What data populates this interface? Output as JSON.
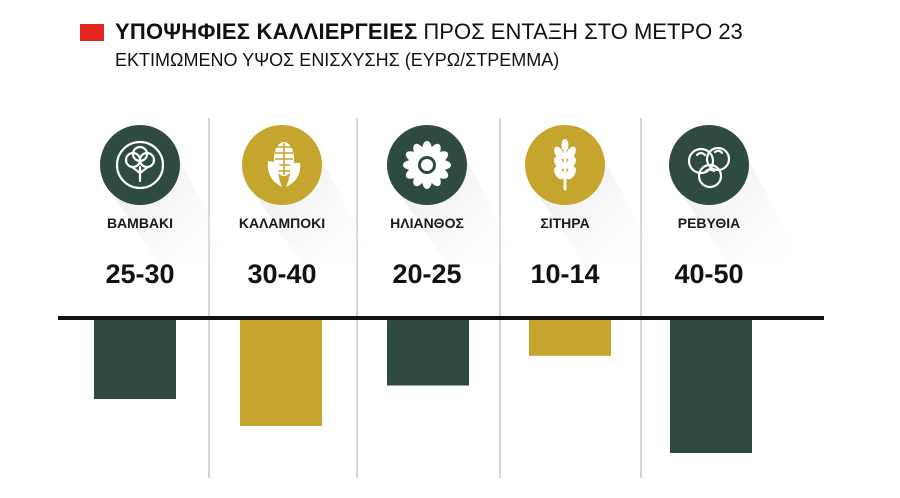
{
  "title": {
    "bold": "ΥΠΟΨΗΦΙΕΣ ΚΑΛΛΙΕΡΓΕΙΕΣ",
    "rest": "ΠΡΟΣ ΕΝΤΑΞΗ ΣΤΟ ΜΕΤΡΟ 23",
    "accent_color": "#e0261e"
  },
  "subtitle": "ΕΚΤΙΜΩΜΕΝΟ ΥΨΟΣ ΕΝΙΣΧΥΣΗΣ (ΕΥΡΩ/ΣΤΡΕΜΜΑ)",
  "colors": {
    "green": "#2f4a3e",
    "gold": "#c6a52e",
    "axis": "#111111",
    "divider": "#c9c9c9"
  },
  "chart_data": {
    "type": "bar",
    "orientation": "downward",
    "categories": [
      "ΒΑΜΒΑΚΙ",
      "ΚΑΛΑΜΠΟΚΙ",
      "ΗΛΙΑΝΘΟΣ",
      "ΣΙΤΗΡΑ",
      "ΡΕΒΥΘΙΑ"
    ],
    "labels": [
      "25-30",
      "30-40",
      "20-25",
      "10-14",
      "40-50"
    ],
    "ranges": [
      [
        25,
        30
      ],
      [
        30,
        40
      ],
      [
        20,
        25
      ],
      [
        10,
        14
      ],
      [
        40,
        50
      ]
    ],
    "values": [
      30,
      40,
      25,
      14,
      50
    ],
    "icons": [
      "cotton-icon",
      "corn-icon",
      "sunflower-icon",
      "wheat-icon",
      "chickpea-icon"
    ],
    "bar_colors": [
      "#2f4a3e",
      "#c6a52e",
      "#2f4a3e",
      "#c6a52e",
      "#2f4a3e"
    ],
    "ylim": [
      0,
      50
    ],
    "grid": false
  }
}
